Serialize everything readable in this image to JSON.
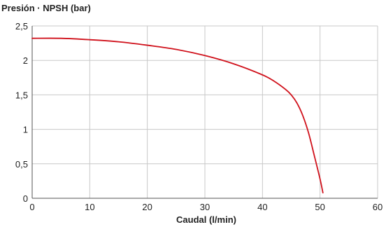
{
  "chart_data": {
    "type": "line",
    "title": "Presión · NPSH (bar)",
    "xlabel": "Caudal (l/min)",
    "ylabel": "",
    "xlim": [
      0,
      60
    ],
    "ylim": [
      0,
      2.5
    ],
    "x_ticks": [
      0,
      10,
      20,
      30,
      40,
      50,
      60
    ],
    "x_tick_labels": [
      "0",
      "10",
      "20",
      "30",
      "40",
      "50",
      "60"
    ],
    "y_ticks": [
      0,
      0.5,
      1,
      1.5,
      2,
      2.5
    ],
    "y_tick_labels": [
      "0",
      "0,5",
      "1",
      "1,5",
      "2",
      "2,5"
    ],
    "grid": true,
    "series": [
      {
        "color": "#d0111b",
        "x": [
          0,
          5,
          10,
          15,
          20,
          25,
          30,
          35,
          40,
          42,
          44,
          45,
          46,
          47,
          48,
          49,
          50,
          50.5
        ],
        "y": [
          2.32,
          2.32,
          2.3,
          2.27,
          2.22,
          2.16,
          2.07,
          1.95,
          1.79,
          1.7,
          1.58,
          1.5,
          1.38,
          1.2,
          0.95,
          0.62,
          0.28,
          0.08
        ]
      }
    ]
  }
}
